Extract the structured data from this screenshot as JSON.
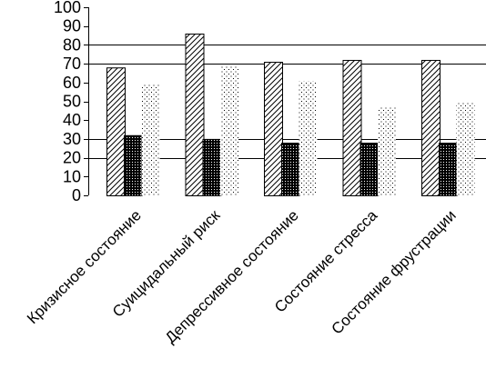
{
  "chart_data": {
    "type": "bar",
    "categories": [
      "Кризисное состояние",
      "Суицидальный риск",
      "Депрессивное состояние",
      "Состояние стресса",
      "Состояние фрустрации"
    ],
    "series": [
      {
        "values": [
          68,
          86,
          71,
          72,
          72
        ],
        "pattern": "diagonal-hatch"
      },
      {
        "values": [
          32,
          30,
          28,
          28,
          28
        ],
        "pattern": "dense-black"
      },
      {
        "values": [
          59,
          69,
          61,
          47,
          50
        ],
        "pattern": "dotted"
      }
    ],
    "ylim": [
      0,
      100
    ],
    "yticks": [
      0,
      10,
      20,
      30,
      40,
      50,
      60,
      70,
      80,
      90,
      100
    ],
    "gridlines_at": [
      20,
      30,
      70,
      80
    ],
    "legend": "none",
    "title": "",
    "xlabel": "",
    "ylabel": ""
  }
}
